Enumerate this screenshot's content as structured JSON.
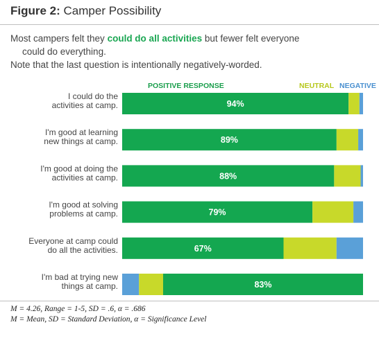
{
  "figure": {
    "label": "Figure 2:",
    "title": "Camper Possibility"
  },
  "intro": {
    "line1_pre": "Most campers felt they ",
    "line1_highlight": "could do all activities",
    "line1_post": " but fewer felt everyone",
    "line2": "could do everything.",
    "line3": "Note that the last question is intentionally negatively-worded."
  },
  "chart_data": {
    "type": "bar",
    "orientation": "horizontal",
    "stacked": true,
    "legend": [
      "POSITIVE RESPONSE",
      "NEUTRAL",
      "NEGATIVE"
    ],
    "legend_placement": "top",
    "colors": {
      "positive": "#14a750",
      "neutral": "#c8d92a",
      "negative": "#5aa0d8",
      "positive_label": "#1a9e4c",
      "neutral_label": "#b7c81d",
      "negative_label": "#4a90d0"
    },
    "categories": [
      [
        "I could do the",
        "activities at camp."
      ],
      [
        "I'm good at learning",
        "new things at camp."
      ],
      [
        "I'm good at doing the",
        "activities at camp."
      ],
      [
        "I'm good at solving",
        "problems at camp."
      ],
      [
        "Everyone at camp could",
        "do all the activities."
      ],
      [
        "I'm bad at trying new",
        "things at camp."
      ]
    ],
    "rows": [
      {
        "order": [
          "positive",
          "neutral",
          "negative"
        ],
        "values": [
          94,
          4.5,
          1.5
        ],
        "label": "94%"
      },
      {
        "order": [
          "positive",
          "neutral",
          "negative"
        ],
        "values": [
          89,
          9,
          2
        ],
        "label": "89%"
      },
      {
        "order": [
          "positive",
          "neutral",
          "negative"
        ],
        "values": [
          88,
          11,
          1
        ],
        "label": "88%"
      },
      {
        "order": [
          "positive",
          "neutral",
          "negative"
        ],
        "values": [
          79,
          17,
          4
        ],
        "label": "79%"
      },
      {
        "order": [
          "positive",
          "neutral",
          "negative"
        ],
        "values": [
          67,
          22,
          11
        ],
        "label": "67%"
      },
      {
        "order": [
          "negative",
          "neutral",
          "positive"
        ],
        "values": [
          7,
          10,
          83
        ],
        "label": "83%"
      }
    ],
    "xlim": [
      0,
      100
    ],
    "grid": false
  },
  "notes": {
    "line1": "M = 4.26, Range = 1-5, SD = .6, α = .686",
    "line2": "M = Mean, SD = Standard Deviation, α = Significance Level"
  }
}
